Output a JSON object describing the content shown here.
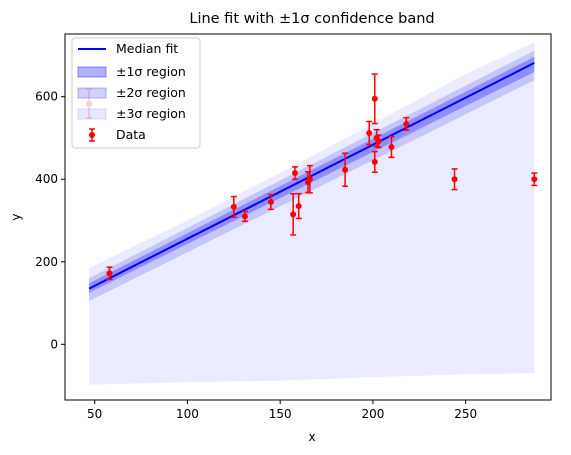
{
  "chart_data": {
    "type": "line",
    "title": "Line fit with ±1σ confidence band",
    "xlabel": "x",
    "ylabel": "y",
    "xlim": [
      34,
      296
    ],
    "ylim": [
      -135,
      752
    ],
    "xticks": [
      50,
      100,
      150,
      200,
      250
    ],
    "yticks": [
      0,
      200,
      400,
      600
    ],
    "grid": false,
    "legend_position": "top-left",
    "colors": {
      "fit": "#0000ff",
      "band1": "#0000ff",
      "band2": "#0000ff",
      "band3": "#0000ff",
      "data": "#ff0000"
    },
    "fit": {
      "name": "Median fit",
      "x": [
        47,
        287
      ],
      "y": [
        135,
        682
      ]
    },
    "bands": [
      {
        "name": "±1σ region",
        "x": [
          47,
          287
        ],
        "lower": [
          125,
          660
        ],
        "upper": [
          148,
          697
        ]
      },
      {
        "name": "±2σ region",
        "x": [
          47,
          287
        ],
        "lower": [
          105,
          640
        ],
        "upper": [
          160,
          712
        ]
      },
      {
        "name": "±3σ region",
        "x": [
          47,
          100,
          150,
          200,
          250,
          287
        ],
        "lower": [
          -98,
          -92,
          -88,
          -80,
          -73,
          -70
        ],
        "upper": [
          185,
          300,
          415,
          535,
          655,
          732
        ]
      }
    ],
    "data_series": {
      "name": "Data",
      "points": [
        {
          "x": 47,
          "y": 583,
          "err": 35
        },
        {
          "x": 58,
          "y": 172,
          "err": 15
        },
        {
          "x": 125,
          "y": 333,
          "err": 25
        },
        {
          "x": 131,
          "y": 310,
          "err": 12
        },
        {
          "x": 145,
          "y": 345,
          "err": 18
        },
        {
          "x": 157,
          "y": 315,
          "err": 50
        },
        {
          "x": 158,
          "y": 415,
          "err": 15
        },
        {
          "x": 160,
          "y": 335,
          "err": 30
        },
        {
          "x": 165,
          "y": 393,
          "err": 25
        },
        {
          "x": 166,
          "y": 400,
          "err": 33
        },
        {
          "x": 185,
          "y": 423,
          "err": 40
        },
        {
          "x": 198,
          "y": 512,
          "err": 28
        },
        {
          "x": 201,
          "y": 595,
          "err": 60
        },
        {
          "x": 201,
          "y": 442,
          "err": 25
        },
        {
          "x": 202,
          "y": 500,
          "err": 20
        },
        {
          "x": 203,
          "y": 492,
          "err": 15
        },
        {
          "x": 210,
          "y": 478,
          "err": 25
        },
        {
          "x": 218,
          "y": 534,
          "err": 15
        },
        {
          "x": 244,
          "y": 400,
          "err": 25
        },
        {
          "x": 287,
          "y": 400,
          "err": 15
        }
      ]
    }
  }
}
